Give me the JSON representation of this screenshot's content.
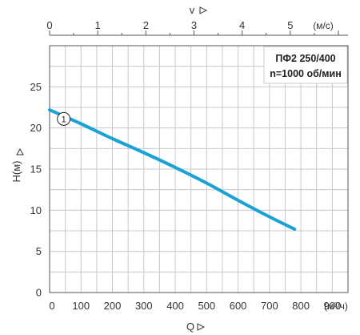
{
  "chart_data": {
    "type": "line",
    "info_box": [
      "ПФ2 250/400",
      "n=1000 об/мин"
    ],
    "x_axis": {
      "label": "Q",
      "unit": "(м³/ч)",
      "range": [
        0,
        950
      ],
      "ticks": [
        "0",
        "100",
        "200",
        "300",
        "400",
        "500",
        "600",
        "700",
        "800",
        "900"
      ]
    },
    "y_axis": {
      "label": "H(м)",
      "range": [
        0,
        30
      ],
      "ticks": [
        "0",
        "5",
        "10",
        "15",
        "20",
        "25"
      ]
    },
    "top_axis": {
      "label": "v",
      "unit": "(м/с)",
      "range": [
        0,
        6.2
      ],
      "ticks": [
        "0",
        "1",
        "2",
        "3",
        "4",
        "5"
      ]
    },
    "grid": true,
    "series": [
      {
        "marker": "1",
        "color": "#1aa1d6",
        "x": [
          0,
          100,
          200,
          300,
          400,
          500,
          600,
          700,
          780
        ],
        "y": [
          22.2,
          20.5,
          18.7,
          17.0,
          15.2,
          13.3,
          11.2,
          9.2,
          7.7
        ]
      }
    ]
  }
}
